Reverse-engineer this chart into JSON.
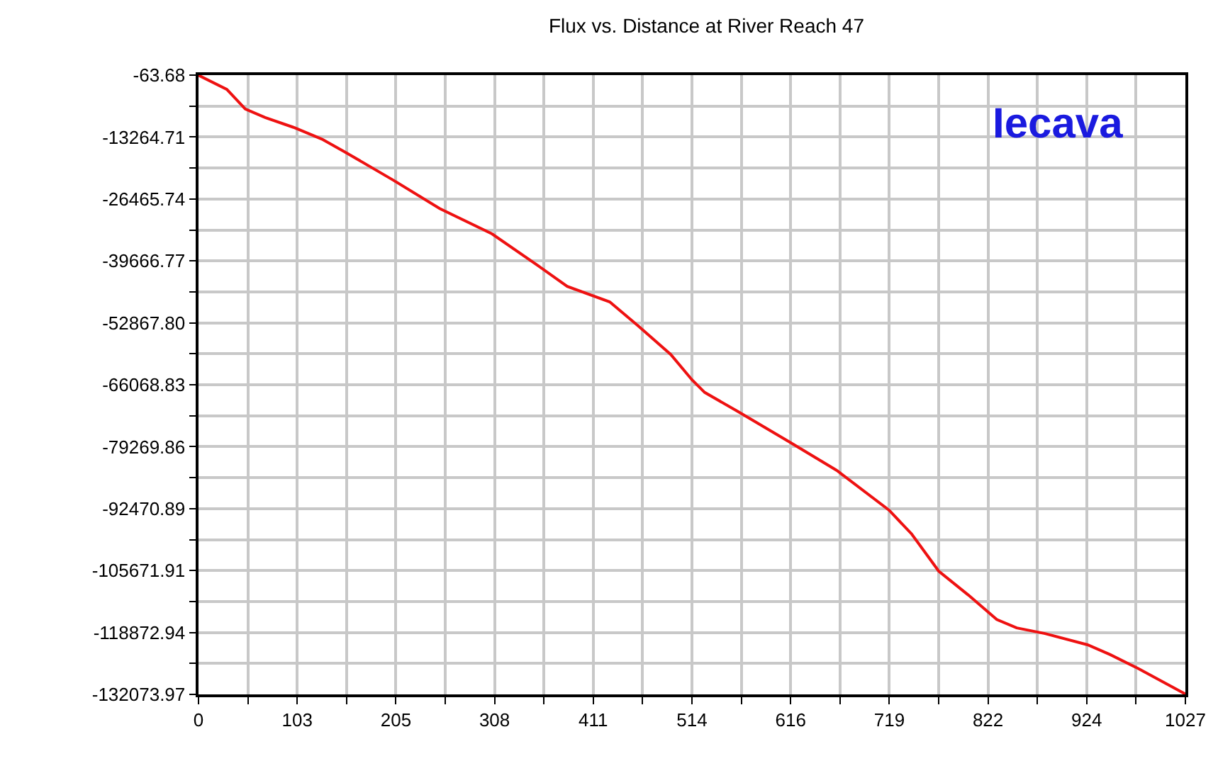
{
  "chart_data": {
    "type": "line",
    "title": "Flux vs. Distance at River Reach 47",
    "annotations": [
      "Iecava"
    ],
    "x": [
      0,
      29.5,
      48.7,
      69.4,
      98.9,
      128.4,
      152,
      202.2,
      250.9,
      305.4,
      354.1,
      383.7,
      427.9,
      457.4,
      491.4,
      513.5,
      526.8,
      560.7,
      615.3,
      664,
      718.6,
      742.2,
      770.3,
      801.2,
      830.7,
      851.4,
      880.9,
      925.2,
      948.8,
      978.3,
      1027
    ],
    "series": [
      {
        "color": "#ee1111",
        "values": [
          -100,
          -3100,
          -7300,
          -9100,
          -11200,
          -13700,
          -16400,
          -22400,
          -28500,
          -33900,
          -40800,
          -45100,
          -48400,
          -53500,
          -59600,
          -65000,
          -67700,
          -71700,
          -78300,
          -84300,
          -92800,
          -97900,
          -105800,
          -110900,
          -116100,
          -117900,
          -119100,
          -121500,
          -123600,
          -126600,
          -132000
        ]
      }
    ],
    "xlim": [
      0,
      1027
    ],
    "xticks": [
      0,
      {
        "value": 51.35,
        "label": null
      },
      {
        "value": 102.7,
        "label": "103"
      },
      {
        "value": 154.05,
        "label": null
      },
      {
        "value": 205.4,
        "label": "205"
      },
      {
        "value": 256.75,
        "label": null
      },
      {
        "value": 308.1,
        "label": "308"
      },
      {
        "value": 359.45,
        "label": null
      },
      {
        "value": 410.8,
        "label": "411"
      },
      {
        "value": 462.15,
        "label": null
      },
      {
        "value": 513.5,
        "label": "514"
      },
      {
        "value": 564.85,
        "label": null
      },
      {
        "value": 616.2,
        "label": "616"
      },
      {
        "value": 667.55,
        "label": null
      },
      {
        "value": 718.9,
        "label": "719"
      },
      {
        "value": 770.25,
        "label": null
      },
      {
        "value": 821.6,
        "label": "822"
      },
      {
        "value": 872.95,
        "label": null
      },
      {
        "value": 924.3,
        "label": "924"
      },
      {
        "value": 975.65,
        "label": null
      },
      1027
    ],
    "ylim": [
      -132073.97,
      -63.68
    ],
    "yticks": [
      -63.68,
      {
        "value": -6664.2,
        "label": null
      },
      -13264.71,
      {
        "value": -19865.2,
        "label": null
      },
      -26465.74,
      {
        "value": -33066.3,
        "label": null
      },
      -39666.77,
      {
        "value": -46267.3,
        "label": null
      },
      {
        "value": -52867.8,
        "label": "-52867.80"
      },
      {
        "value": -59468.3,
        "label": null
      },
      -66068.83,
      {
        "value": -72669.3,
        "label": null
      },
      -79269.86,
      {
        "value": -85870.4,
        "label": null
      },
      -92470.89,
      {
        "value": -99071.4,
        "label": null
      },
      -105671.91,
      {
        "value": -112272.4,
        "label": null
      },
      -118872.94,
      {
        "value": -125473.5,
        "label": null
      },
      -132073.97
    ],
    "grid": true,
    "marker": "none",
    "line_style": "solid"
  }
}
